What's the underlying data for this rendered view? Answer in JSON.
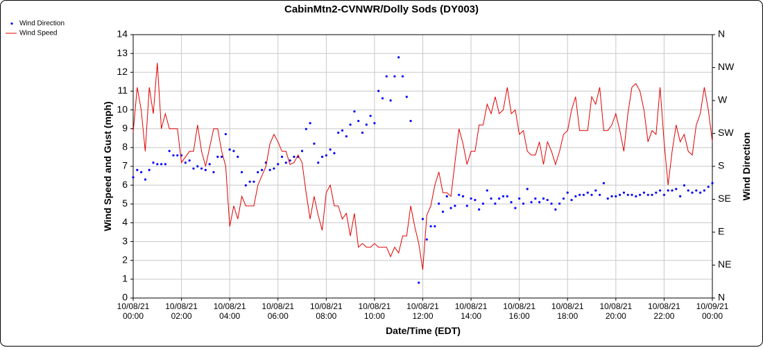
{
  "chart_data": {
    "type": "line",
    "title": "CabinMtn2-CVNWR/Dolly Sods (DY003)",
    "xlabel": "Date/Time (EDT)",
    "ylabel": "Wind Speed and Gust (mph)",
    "y2label": "Wind Direction",
    "legend": "top-left",
    "grid": true,
    "xlim": [
      0,
      1440
    ],
    "xticks": [
      {
        "value": 0,
        "label": "10/08/21 00:00"
      },
      {
        "value": 120,
        "label": "10/08/21 02:00"
      },
      {
        "value": 240,
        "label": "10/08/21 04:00"
      },
      {
        "value": 360,
        "label": "10/08/21 06:00"
      },
      {
        "value": 480,
        "label": "10/08/21 08:00"
      },
      {
        "value": 600,
        "label": "10/08/21 10:00"
      },
      {
        "value": 720,
        "label": "10/08/21 12:00"
      },
      {
        "value": 840,
        "label": "10/08/21 14:00"
      },
      {
        "value": 960,
        "label": "10/08/21 16:00"
      },
      {
        "value": 1080,
        "label": "10/08/21 18:00"
      },
      {
        "value": 1200,
        "label": "10/08/21 20:00"
      },
      {
        "value": 1320,
        "label": "10/08/21 22:00"
      },
      {
        "value": 1440,
        "label": "10/09/21 00:00"
      }
    ],
    "ylim": [
      0,
      14
    ],
    "yticks": [
      0,
      1,
      2,
      3,
      4,
      5,
      6,
      7,
      8,
      9,
      10,
      11,
      12,
      13,
      14
    ],
    "y2lim": [
      0,
      360
    ],
    "y2ticks": [
      {
        "value": 0,
        "label": "N"
      },
      {
        "value": 45,
        "label": "NE"
      },
      {
        "value": 90,
        "label": "E"
      },
      {
        "value": 135,
        "label": "SE"
      },
      {
        "value": 180,
        "label": "S"
      },
      {
        "value": 225,
        "label": "SW"
      },
      {
        "value": 270,
        "label": "W"
      },
      {
        "value": 315,
        "label": "NW"
      },
      {
        "value": 360,
        "label": "N"
      }
    ],
    "series": [
      {
        "name": "Wind Direction",
        "type": "scatter",
        "axis": "y2",
        "color": "#0000ff",
        "x": [
          0,
          10,
          20,
          30,
          40,
          50,
          60,
          70,
          80,
          90,
          100,
          110,
          120,
          130,
          140,
          150,
          160,
          170,
          180,
          190,
          200,
          210,
          220,
          230,
          240,
          250,
          260,
          270,
          280,
          290,
          300,
          310,
          320,
          330,
          340,
          350,
          360,
          370,
          380,
          390,
          400,
          410,
          420,
          430,
          440,
          450,
          460,
          470,
          480,
          490,
          500,
          510,
          520,
          530,
          540,
          550,
          560,
          570,
          580,
          590,
          600,
          610,
          620,
          630,
          640,
          650,
          660,
          670,
          680,
          690,
          710,
          720,
          730,
          740,
          750,
          760,
          770,
          780,
          790,
          800,
          810,
          820,
          830,
          840,
          850,
          860,
          870,
          880,
          890,
          900,
          910,
          920,
          930,
          940,
          950,
          960,
          970,
          980,
          990,
          1000,
          1010,
          1020,
          1030,
          1040,
          1050,
          1060,
          1070,
          1080,
          1090,
          1100,
          1110,
          1120,
          1130,
          1140,
          1150,
          1160,
          1170,
          1180,
          1190,
          1200,
          1210,
          1220,
          1230,
          1240,
          1250,
          1260,
          1270,
          1280,
          1290,
          1300,
          1310,
          1320,
          1330,
          1340,
          1350,
          1360,
          1370,
          1380,
          1390,
          1400,
          1410,
          1420,
          1430,
          1440
        ],
        "values": [
          165,
          175,
          172,
          162,
          175,
          185,
          183,
          183,
          183,
          201,
          195,
          195,
          195,
          185,
          188,
          177,
          180,
          177,
          175,
          183,
          172,
          193,
          193,
          224,
          203,
          201,
          193,
          172,
          154,
          159,
          159,
          172,
          175,
          185,
          175,
          177,
          183,
          193,
          185,
          188,
          193,
          193,
          201,
          231,
          239,
          211,
          185,
          193,
          195,
          203,
          198,
          226,
          229,
          221,
          237,
          255,
          242,
          226,
          237,
          249,
          239,
          283,
          273,
          303,
          270,
          303,
          329,
          303,
          275,
          242,
          21,
          108,
          80,
          98,
          98,
          129,
          118,
          139,
          123,
          126,
          141,
          139,
          126,
          136,
          134,
          121,
          129,
          147,
          136,
          129,
          136,
          139,
          139,
          131,
          123,
          136,
          129,
          149,
          131,
          136,
          131,
          136,
          134,
          129,
          121,
          129,
          136,
          144,
          134,
          139,
          141,
          141,
          144,
          141,
          147,
          141,
          157,
          136,
          139,
          139,
          141,
          144,
          141,
          141,
          139,
          141,
          144,
          141,
          141,
          144,
          147,
          141,
          147,
          147,
          149,
          139,
          154,
          147,
          144,
          147,
          144,
          147,
          152,
          157
        ]
      },
      {
        "name": "Wind Speed",
        "type": "line",
        "color": "#e00000",
        "x": [
          0,
          10,
          20,
          30,
          40,
          50,
          60,
          70,
          80,
          90,
          110,
          120,
          140,
          150,
          160,
          170,
          180,
          200,
          210,
          220,
          230,
          240,
          250,
          260,
          270,
          280,
          300,
          310,
          320,
          330,
          340,
          350,
          360,
          370,
          380,
          390,
          400,
          410,
          420,
          430,
          440,
          450,
          460,
          470,
          480,
          490,
          500,
          510,
          520,
          530,
          540,
          550,
          560,
          570,
          580,
          590,
          600,
          610,
          630,
          640,
          650,
          660,
          670,
          680,
          690,
          700,
          710,
          720,
          730,
          740,
          750,
          760,
          770,
          780,
          790,
          810,
          820,
          830,
          840,
          850,
          860,
          870,
          880,
          890,
          900,
          910,
          920,
          930,
          940,
          950,
          960,
          970,
          980,
          990,
          1000,
          1010,
          1020,
          1030,
          1040,
          1050,
          1060,
          1070,
          1080,
          1090,
          1100,
          1110,
          1130,
          1140,
          1150,
          1160,
          1170,
          1180,
          1190,
          1200,
          1210,
          1220,
          1230,
          1240,
          1250,
          1260,
          1270,
          1280,
          1290,
          1300,
          1310,
          1320,
          1330,
          1340,
          1350,
          1360,
          1370,
          1380,
          1390,
          1400,
          1410,
          1420,
          1430,
          1440
        ],
        "values": [
          8.8,
          11.2,
          10.0,
          7.8,
          11.2,
          9.8,
          12.5,
          9.0,
          9.8,
          9.0,
          9.0,
          7.2,
          7.8,
          7.8,
          9.2,
          7.8,
          7.0,
          9.0,
          9.0,
          7.8,
          7.0,
          3.8,
          4.9,
          4.2,
          5.4,
          4.9,
          4.9,
          6.0,
          6.5,
          7.0,
          8.2,
          8.7,
          8.3,
          7.8,
          7.8,
          7.1,
          7.2,
          7.6,
          7.2,
          5.6,
          4.2,
          5.4,
          4.4,
          3.6,
          5.6,
          6.0,
          4.9,
          4.9,
          4.2,
          4.5,
          3.3,
          4.5,
          2.7,
          2.9,
          2.7,
          2.7,
          2.9,
          2.7,
          2.7,
          2.2,
          2.7,
          2.4,
          3.3,
          3.3,
          4.9,
          3.8,
          2.9,
          1.5,
          4.4,
          4.9,
          6.0,
          6.7,
          5.6,
          5.6,
          5.4,
          9.0,
          8.2,
          7.1,
          7.8,
          7.8,
          9.2,
          9.2,
          10.3,
          9.8,
          10.7,
          9.8,
          10.0,
          11.2,
          9.8,
          10.0,
          8.7,
          8.9,
          7.8,
          7.6,
          7.6,
          8.3,
          7.1,
          8.3,
          7.8,
          7.1,
          7.8,
          8.7,
          8.9,
          10.0,
          10.7,
          8.9,
          8.9,
          10.7,
          10.3,
          11.2,
          8.9,
          8.9,
          9.2,
          9.8,
          8.9,
          7.8,
          9.8,
          11.2,
          11.4,
          11.0,
          10.0,
          8.3,
          8.9,
          8.7,
          11.2,
          8.3,
          6.0,
          7.8,
          9.2,
          8.3,
          8.7,
          7.8,
          7.6,
          9.2,
          9.8,
          11.2,
          10.0,
          8.3
        ]
      }
    ]
  }
}
